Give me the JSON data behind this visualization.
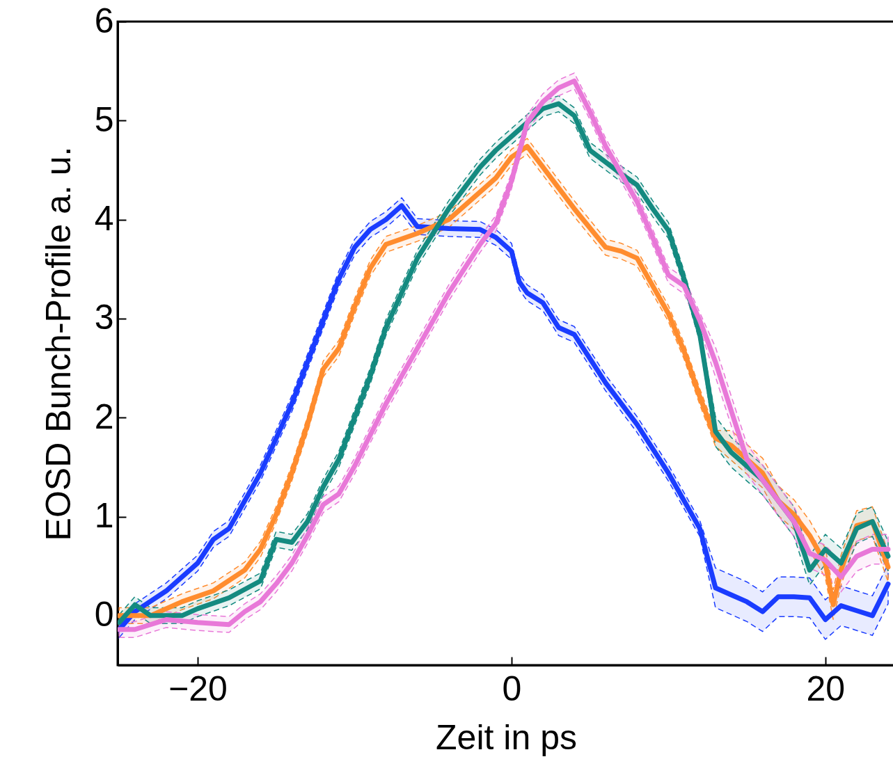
{
  "chart_data": {
    "type": "line",
    "xlabel": "Zeit in ps",
    "ylabel": "EOSD Bunch-Profile a. u.",
    "xlim": [
      -25.1,
      24.4
    ],
    "ylim": [
      -0.5,
      6
    ],
    "xticks": [
      -20,
      0,
      20
    ],
    "yticks": [
      0,
      1,
      2,
      3,
      4,
      5,
      6
    ],
    "series": [
      {
        "color": "#1a3cff",
        "x": [
          -25,
          -24,
          -22,
          -20,
          -19,
          -18,
          -16,
          -14,
          -12,
          -11,
          -10,
          -9,
          -8,
          -7,
          -6,
          -4,
          -2,
          -1,
          0,
          0.5,
          1,
          2,
          3,
          4,
          6,
          8,
          10,
          12,
          13,
          14,
          15,
          16,
          17,
          18,
          19,
          20,
          21,
          22,
          23,
          24
        ],
        "values": [
          -0.14,
          0.04,
          0.25,
          0.53,
          0.77,
          0.88,
          1.44,
          2.14,
          2.98,
          3.4,
          3.72,
          3.9,
          4.0,
          4.14,
          3.93,
          3.91,
          3.9,
          3.82,
          3.68,
          3.37,
          3.26,
          3.16,
          2.91,
          2.84,
          2.35,
          1.93,
          1.44,
          0.88,
          0.28,
          0.21,
          0.14,
          0.04,
          0.19,
          0.19,
          0.18,
          -0.04,
          0.1,
          0.05,
          0,
          0.32
        ],
        "lower": [
          -0.22,
          -0.04,
          0.17,
          0.45,
          0.69,
          0.8,
          1.36,
          2.06,
          2.9,
          3.32,
          3.64,
          3.82,
          3.92,
          4.06,
          3.85,
          3.83,
          3.82,
          3.74,
          3.6,
          3.29,
          3.18,
          3.08,
          2.83,
          2.76,
          2.27,
          1.85,
          1.36,
          0.8,
          0.08,
          0.01,
          -0.06,
          -0.16,
          -0.01,
          -0.01,
          -0.02,
          -0.24,
          -0.1,
          -0.15,
          -0.2,
          0.12
        ],
        "upper": [
          -0.06,
          0.12,
          0.33,
          0.61,
          0.85,
          0.96,
          1.52,
          2.22,
          3.06,
          3.48,
          3.8,
          3.98,
          4.08,
          4.22,
          4.01,
          3.99,
          3.98,
          3.9,
          3.76,
          3.45,
          3.34,
          3.24,
          2.99,
          2.92,
          2.43,
          2.01,
          1.52,
          0.96,
          0.48,
          0.41,
          0.34,
          0.24,
          0.39,
          0.39,
          0.38,
          0.16,
          0.3,
          0.25,
          0.2,
          0.52
        ]
      },
      {
        "color": "#ff8c2e",
        "x": [
          -25,
          -23,
          -21,
          -19,
          -17,
          -16,
          -15,
          -14,
          -13,
          -12,
          -11,
          -10,
          -9,
          -8,
          -6,
          -4,
          -2,
          -1,
          0,
          1,
          2,
          3,
          4,
          6,
          7,
          8,
          10,
          11,
          12,
          13,
          14,
          15,
          16,
          17,
          18,
          19,
          20,
          20.5,
          21,
          22,
          23,
          24
        ],
        "values": [
          0,
          0,
          0.14,
          0.25,
          0.46,
          0.67,
          1.02,
          1.44,
          1.93,
          2.49,
          2.7,
          3.12,
          3.51,
          3.75,
          3.86,
          4.0,
          4.28,
          4.42,
          4.63,
          4.74,
          4.53,
          4.32,
          4.11,
          3.72,
          3.68,
          3.61,
          3.05,
          2.67,
          2.21,
          1.79,
          1.72,
          1.58,
          1.44,
          1.16,
          1.02,
          0.81,
          0.53,
          0.11,
          0.46,
          0.91,
          0.95,
          0.49
        ],
        "lower": [
          -0.08,
          -0.08,
          0.06,
          0.17,
          0.38,
          0.59,
          0.94,
          1.36,
          1.85,
          2.41,
          2.62,
          3.04,
          3.43,
          3.67,
          3.78,
          3.92,
          4.2,
          4.34,
          4.55,
          4.66,
          4.45,
          4.24,
          4.03,
          3.64,
          3.6,
          3.53,
          2.97,
          2.59,
          2.13,
          1.71,
          1.57,
          1.43,
          1.29,
          1.01,
          0.87,
          0.66,
          0.38,
          -0.04,
          0.31,
          0.76,
          0.8,
          0.34
        ],
        "upper": [
          0.08,
          0.08,
          0.22,
          0.33,
          0.54,
          0.75,
          1.1,
          1.52,
          2.01,
          2.57,
          2.78,
          3.2,
          3.59,
          3.83,
          3.94,
          4.08,
          4.36,
          4.5,
          4.71,
          4.82,
          4.61,
          4.4,
          4.19,
          3.8,
          3.76,
          3.69,
          3.13,
          2.75,
          2.29,
          1.87,
          1.87,
          1.73,
          1.59,
          1.31,
          1.17,
          0.96,
          0.68,
          0.26,
          0.61,
          1.06,
          1.1,
          0.64
        ]
      },
      {
        "color": "#148a80",
        "x": [
          -25,
          -24,
          -23,
          -21,
          -20,
          -18,
          -16,
          -15,
          -14,
          -13,
          -12,
          -11,
          -10,
          -9,
          -8,
          -7,
          -6,
          -4,
          -2,
          -1,
          0,
          1,
          2,
          3,
          4,
          5,
          7,
          8,
          9,
          10,
          11,
          12,
          13,
          14,
          16,
          18,
          19,
          20,
          21,
          22,
          23,
          24
        ],
        "values": [
          -0.07,
          0.11,
          0,
          0,
          0.07,
          0.18,
          0.35,
          0.77,
          0.74,
          0.95,
          1.3,
          1.58,
          2.0,
          2.42,
          2.91,
          3.26,
          3.61,
          4.11,
          4.53,
          4.7,
          4.84,
          4.98,
          5.12,
          5.17,
          5.05,
          4.7,
          4.46,
          4.35,
          4.11,
          3.89,
          3.4,
          2.84,
          1.86,
          1.65,
          1.37,
          0.95,
          0.46,
          0.67,
          0.53,
          0.88,
          0.95,
          0.6
        ],
        "lower": [
          -0.15,
          0.03,
          -0.08,
          -0.08,
          -0.01,
          0.1,
          0.27,
          0.69,
          0.66,
          0.87,
          1.22,
          1.5,
          1.92,
          2.34,
          2.83,
          3.18,
          3.53,
          4.03,
          4.45,
          4.62,
          4.76,
          4.9,
          5.04,
          5.09,
          4.97,
          4.62,
          4.38,
          4.27,
          4.03,
          3.81,
          3.32,
          2.76,
          1.71,
          1.5,
          1.22,
          0.8,
          0.31,
          0.52,
          0.38,
          0.73,
          0.8,
          0.45
        ],
        "upper": [
          0.01,
          0.19,
          0.08,
          0.08,
          0.15,
          0.26,
          0.43,
          0.85,
          0.82,
          1.03,
          1.38,
          1.66,
          2.08,
          2.5,
          2.99,
          3.34,
          3.69,
          4.19,
          4.61,
          4.78,
          4.92,
          5.06,
          5.2,
          5.25,
          5.13,
          4.78,
          4.54,
          4.43,
          4.19,
          3.97,
          3.48,
          2.92,
          2.01,
          1.8,
          1.52,
          1.1,
          0.61,
          0.82,
          0.68,
          1.03,
          1.1,
          0.75
        ]
      },
      {
        "color": "#e878d8",
        "x": [
          -25,
          -24,
          -22,
          -20,
          -18,
          -17,
          -16,
          -15,
          -14,
          -13,
          -12,
          -11,
          -10,
          -8,
          -6,
          -4,
          -2,
          -1,
          0,
          1,
          2,
          3,
          4,
          5,
          6,
          8,
          9,
          10,
          11,
          12,
          13,
          14,
          15,
          16,
          18,
          19,
          20,
          21,
          22,
          23,
          24
        ],
        "values": [
          -0.14,
          -0.14,
          -0.04,
          -0.07,
          -0.09,
          0.04,
          0.14,
          0.32,
          0.53,
          0.81,
          1.12,
          1.23,
          1.51,
          2.14,
          2.7,
          3.26,
          3.75,
          3.96,
          4.39,
          4.98,
          5.19,
          5.33,
          5.4,
          5.09,
          4.74,
          4.18,
          3.82,
          3.44,
          3.33,
          2.98,
          2.56,
          2.07,
          1.58,
          1.37,
          0.95,
          0.63,
          0.56,
          0.39,
          0.6,
          0.67,
          0.67
        ],
        "lower": [
          -0.22,
          -0.22,
          -0.12,
          -0.15,
          -0.17,
          -0.04,
          0.06,
          0.24,
          0.45,
          0.73,
          1.04,
          1.15,
          1.43,
          2.06,
          2.62,
          3.18,
          3.67,
          3.88,
          4.31,
          4.9,
          5.11,
          5.25,
          5.32,
          5.01,
          4.66,
          4.1,
          3.74,
          3.36,
          3.25,
          2.9,
          2.41,
          1.92,
          1.43,
          1.22,
          0.8,
          0.48,
          0.41,
          0.24,
          0.45,
          0.52,
          0.52
        ],
        "upper": [
          -0.06,
          -0.06,
          0.04,
          0.01,
          -0.01,
          0.12,
          0.22,
          0.4,
          0.61,
          0.89,
          1.2,
          1.31,
          1.59,
          2.22,
          2.78,
          3.34,
          3.83,
          4.04,
          4.47,
          5.06,
          5.27,
          5.41,
          5.48,
          5.17,
          4.82,
          4.26,
          3.9,
          3.52,
          3.41,
          3.06,
          2.71,
          2.22,
          1.73,
          1.52,
          1.1,
          0.78,
          0.71,
          0.54,
          0.75,
          0.82,
          0.82
        ]
      }
    ]
  }
}
